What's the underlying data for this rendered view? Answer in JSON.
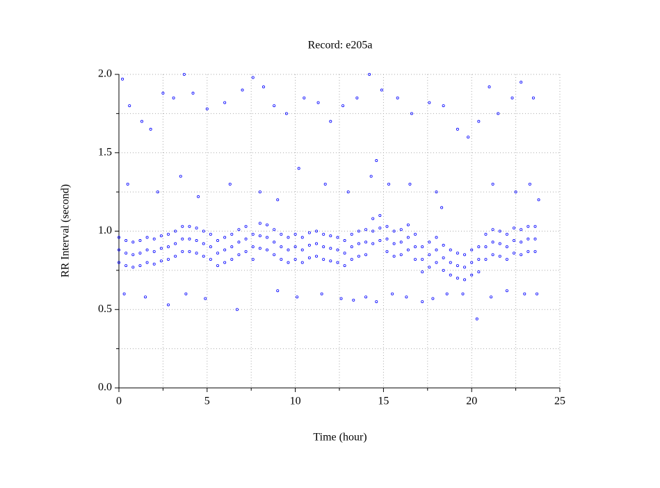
{
  "chart_data": {
    "type": "scatter",
    "title": "Record:  e205a",
    "xlabel": "Time (hour)",
    "ylabel": "RR Interval (second)",
    "color": "#0000ff",
    "grid": true,
    "xlim": [
      0,
      25
    ],
    "xticks": [
      0,
      5,
      10,
      15,
      20,
      25
    ],
    "xminor": [
      2.5,
      7.5,
      12.5,
      17.5,
      22.5
    ],
    "ylim": [
      0,
      2
    ],
    "yticks": [
      {
        "value": 0,
        "label": "0.0"
      },
      {
        "value": 0.5,
        "label": "0.5"
      },
      {
        "value": 1,
        "label": "1.0"
      },
      {
        "value": 1.5,
        "label": "1.5"
      },
      {
        "value": 2,
        "label": "2.0"
      }
    ],
    "yminor": [
      0.25,
      0.75,
      1.25,
      1.75
    ],
    "x": [
      0,
      0,
      0,
      0.4,
      0.4,
      0.4,
      0.8,
      0.8,
      0.8,
      1.2,
      1.2,
      1.2,
      1.6,
      1.6,
      1.6,
      2,
      2,
      2,
      2.4,
      2.4,
      2.4,
      2.8,
      2.8,
      2.8,
      3.2,
      3.2,
      3.2,
      3.6,
      3.6,
      3.6,
      4,
      4,
      4,
      4.4,
      4.4,
      4.4,
      4.8,
      4.8,
      4.8,
      5.2,
      5.2,
      5.2,
      5.6,
      5.6,
      5.6,
      6,
      6,
      6,
      6.4,
      6.4,
      6.4,
      6.8,
      6.8,
      6.8,
      7.2,
      7.2,
      7.2,
      7.6,
      7.6,
      7.6,
      8,
      8,
      8,
      8.4,
      8.4,
      8.4,
      8.8,
      8.8,
      8.8,
      9.2,
      9.2,
      9.2,
      9.6,
      9.6,
      9.6,
      10,
      10,
      10,
      10.4,
      10.4,
      10.4,
      10.8,
      10.8,
      10.8,
      11.2,
      11.2,
      11.2,
      11.6,
      11.6,
      11.6,
      12,
      12,
      12,
      12.4,
      12.4,
      12.4,
      12.8,
      12.8,
      12.8,
      13.2,
      13.2,
      13.2,
      13.6,
      13.6,
      13.6,
      14,
      14,
      14,
      14.4,
      14.4,
      14.4,
      14.8,
      14.8,
      14.8,
      15.2,
      15.2,
      15.2,
      15.6,
      15.6,
      15.6,
      16,
      16,
      16,
      16.4,
      16.4,
      16.4,
      16.8,
      16.8,
      16.8,
      17.2,
      17.2,
      17.2,
      17.6,
      17.6,
      17.6,
      18,
      18,
      18,
      18.4,
      18.4,
      18.4,
      18.8,
      18.8,
      18.8,
      19.2,
      19.2,
      19.2,
      19.6,
      19.6,
      19.6,
      20,
      20,
      20,
      20.4,
      20.4,
      20.4,
      20.8,
      20.8,
      20.8,
      21.2,
      21.2,
      21.2,
      21.6,
      21.6,
      21.6,
      22,
      22,
      22,
      22.4,
      22.4,
      22.4,
      22.8,
      22.8,
      22.8,
      23.2,
      23.2,
      23.2,
      23.6,
      23.6,
      23.6,
      0.2,
      0.6,
      1.3,
      1.8,
      2.5,
      3.1,
      3.7,
      4.2,
      5,
      6,
      7,
      7.6,
      8.2,
      8.8,
      9.5,
      10.5,
      11.3,
      12,
      12.7,
      13.5,
      14.2,
      14.9,
      15.8,
      16.6,
      17.6,
      18.4,
      19.2,
      19.8,
      20.4,
      21,
      21.5,
      22.3,
      22.8,
      23.5,
      0.5,
      2.2,
      3.5,
      4.5,
      6.3,
      8,
      9,
      10.2,
      11.7,
      13,
      14.3,
      14.6,
      15.3,
      16.5,
      18,
      18.3,
      21.2,
      22.5,
      23.3,
      23.8,
      0.3,
      1.5,
      2.8,
      3.8,
      4.9,
      6.7,
      9,
      10.1,
      11.5,
      12.6,
      13.3,
      14,
      14.6,
      15.5,
      16.3,
      17.2,
      17.8,
      18.6,
      19.5,
      20.3,
      21.1,
      22,
      23,
      23.7
    ],
    "values": [
      0.8,
      0.88,
      0.96,
      0.78,
      0.86,
      0.94,
      0.77,
      0.85,
      0.93,
      0.78,
      0.86,
      0.94,
      0.8,
      0.88,
      0.96,
      0.79,
      0.87,
      0.95,
      0.81,
      0.89,
      0.97,
      0.82,
      0.9,
      0.98,
      0.84,
      0.92,
      1,
      0.87,
      0.95,
      1.03,
      0.87,
      0.95,
      1.03,
      0.86,
      0.94,
      1.02,
      0.84,
      0.92,
      1,
      0.82,
      0.9,
      0.98,
      0.78,
      0.86,
      0.94,
      0.8,
      0.88,
      0.96,
      0.82,
      0.9,
      0.98,
      0.85,
      0.93,
      1.01,
      0.87,
      0.95,
      1.03,
      0.82,
      0.9,
      0.98,
      0.89,
      0.97,
      1.05,
      0.88,
      0.96,
      1.04,
      0.85,
      0.93,
      1.01,
      0.82,
      0.9,
      0.98,
      0.8,
      0.88,
      0.96,
      0.82,
      0.9,
      0.98,
      0.8,
      0.88,
      0.96,
      0.83,
      0.91,
      0.99,
      0.84,
      0.92,
      1,
      0.82,
      0.9,
      0.98,
      0.81,
      0.89,
      0.97,
      0.8,
      0.88,
      0.96,
      0.78,
      0.86,
      0.94,
      0.82,
      0.9,
      0.98,
      0.84,
      0.92,
      1,
      0.85,
      0.93,
      1.01,
      0.92,
      1,
      1.08,
      0.94,
      1.02,
      1.1,
      0.87,
      0.95,
      1.03,
      0.84,
      0.92,
      1,
      0.85,
      0.93,
      1.01,
      0.88,
      0.96,
      1.04,
      0.82,
      0.9,
      0.98,
      0.74,
      0.82,
      0.9,
      0.77,
      0.85,
      0.93,
      0.8,
      0.88,
      0.96,
      0.75,
      0.83,
      0.91,
      0.72,
      0.8,
      0.88,
      0.7,
      0.78,
      0.86,
      0.69,
      0.77,
      0.85,
      0.72,
      0.8,
      0.88,
      0.74,
      0.82,
      0.9,
      0.82,
      0.9,
      0.98,
      0.85,
      0.93,
      1.01,
      0.84,
      0.92,
      1,
      0.82,
      0.9,
      0.98,
      0.86,
      0.94,
      1.02,
      0.85,
      0.93,
      1.01,
      0.87,
      0.95,
      1.03,
      0.87,
      0.95,
      1.03,
      1.97,
      1.8,
      1.7,
      1.65,
      1.88,
      1.85,
      2,
      1.88,
      1.78,
      1.82,
      1.9,
      1.98,
      1.92,
      1.8,
      1.75,
      1.85,
      1.82,
      1.7,
      1.8,
      1.85,
      2,
      1.9,
      1.85,
      1.75,
      1.82,
      1.8,
      1.65,
      1.6,
      1.7,
      1.92,
      1.75,
      1.85,
      1.95,
      1.85,
      1.3,
      1.25,
      1.35,
      1.22,
      1.3,
      1.25,
      1.2,
      1.4,
      1.3,
      1.25,
      1.35,
      1.45,
      1.3,
      1.3,
      1.25,
      1.15,
      1.3,
      1.25,
      1.3,
      1.2,
      0.6,
      0.58,
      0.53,
      0.6,
      0.57,
      0.5,
      0.62,
      0.58,
      0.6,
      0.57,
      0.56,
      0.58,
      0.55,
      0.6,
      0.58,
      0.55,
      0.57,
      0.6,
      0.6,
      0.44,
      0.58,
      0.62,
      0.6,
      0.6
    ]
  }
}
